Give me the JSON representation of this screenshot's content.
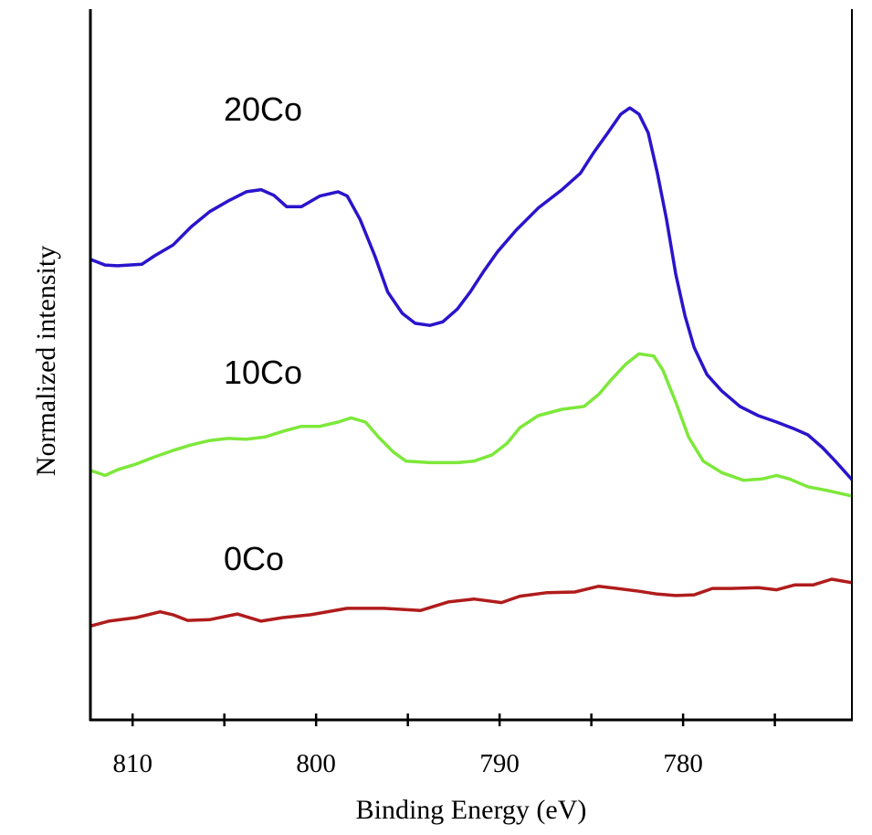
{
  "chart_data": {
    "type": "line",
    "title": "",
    "xlabel": "Binding Energy (eV)",
    "ylabel": "Normalized intensity",
    "xlim": [
      812.3,
      770.8
    ],
    "x_reversed": true,
    "ylim": [
      0,
      100
    ],
    "y_ticks_shown": false,
    "x_ticks": [
      810,
      800,
      790,
      780
    ],
    "x_tick_labels": [
      "810",
      "800",
      "790",
      "780"
    ],
    "x_minor_ticks": [
      805,
      795,
      785,
      775
    ],
    "grid": false,
    "legend": "none; series labeled inline",
    "series": [
      {
        "name": "20Co",
        "color": "#2a14cc",
        "x": [
          812.3,
          811.5,
          810.8,
          809.5,
          808.8,
          807.8,
          806.8,
          805.8,
          804.8,
          803.8,
          803.0,
          802.3,
          801.6,
          800.8,
          799.8,
          798.8,
          798.3,
          797.6,
          796.8,
          796.1,
          795.3,
          794.6,
          793.8,
          793.1,
          792.3,
          791.6,
          790.9,
          790.1,
          789.1,
          787.9,
          786.6,
          785.6,
          784.9,
          784.1,
          783.4,
          782.9,
          782.4,
          781.9,
          781.4,
          780.9,
          780.4,
          779.9,
          779.4,
          778.7,
          777.9,
          776.9,
          775.9,
          774.9,
          773.9,
          773.2,
          772.4,
          771.7,
          770.8
        ],
        "y": [
          64.8,
          64.0,
          63.9,
          64.1,
          65.3,
          66.8,
          69.4,
          71.5,
          73.0,
          74.3,
          74.6,
          73.8,
          72.2,
          72.2,
          73.7,
          74.3,
          73.7,
          70.4,
          65.3,
          60.2,
          57.2,
          55.8,
          55.5,
          56.0,
          57.8,
          60.2,
          63.0,
          65.9,
          68.9,
          72.0,
          74.6,
          76.9,
          79.7,
          82.6,
          85.2,
          86.1,
          85.2,
          82.6,
          76.9,
          70.4,
          62.7,
          56.9,
          52.4,
          48.6,
          46.3,
          44.1,
          42.8,
          41.9,
          40.9,
          40.1,
          38.3,
          36.4,
          33.8
        ]
      },
      {
        "name": "10Co",
        "color": "#7de83a",
        "x": [
          812.3,
          811.5,
          810.8,
          809.8,
          808.8,
          807.8,
          806.8,
          805.8,
          804.8,
          803.8,
          802.8,
          801.8,
          800.8,
          799.8,
          798.8,
          798.1,
          797.3,
          796.6,
          795.8,
          795.1,
          793.8,
          792.3,
          791.4,
          790.4,
          789.6,
          788.9,
          787.9,
          786.6,
          785.4,
          784.6,
          783.9,
          783.1,
          782.4,
          781.6,
          781.1,
          780.4,
          779.7,
          778.9,
          777.9,
          776.7,
          775.7,
          774.9,
          774.2,
          773.2,
          772.2,
          770.8
        ],
        "y": [
          35.1,
          34.4,
          35.2,
          36.0,
          37.0,
          37.9,
          38.7,
          39.3,
          39.6,
          39.5,
          39.8,
          40.6,
          41.3,
          41.3,
          41.9,
          42.5,
          41.9,
          39.8,
          37.7,
          36.4,
          36.2,
          36.2,
          36.4,
          37.3,
          38.9,
          41.1,
          42.8,
          43.7,
          44.1,
          45.8,
          47.9,
          50.1,
          51.5,
          51.2,
          49.2,
          44.7,
          39.8,
          36.4,
          34.8,
          33.7,
          33.9,
          34.4,
          33.9,
          32.8,
          32.3,
          31.5
        ]
      },
      {
        "name": "0Co",
        "color": "#b01c1c",
        "x": [
          812.3,
          811.3,
          809.8,
          808.5,
          807.8,
          807.0,
          805.8,
          804.3,
          803.0,
          801.8,
          800.3,
          798.3,
          796.3,
          794.3,
          792.8,
          791.4,
          789.9,
          788.9,
          787.4,
          785.9,
          784.6,
          783.6,
          782.4,
          781.4,
          780.4,
          779.4,
          778.4,
          777.4,
          775.9,
          774.9,
          773.9,
          772.9,
          771.9,
          770.8
        ],
        "y": [
          13.2,
          13.9,
          14.4,
          15.2,
          14.8,
          14.0,
          14.1,
          14.9,
          13.9,
          14.4,
          14.8,
          15.7,
          15.7,
          15.4,
          16.6,
          17.0,
          16.5,
          17.4,
          17.9,
          18.0,
          18.8,
          18.5,
          18.1,
          17.7,
          17.5,
          17.6,
          18.5,
          18.5,
          18.6,
          18.3,
          19.0,
          19.0,
          19.8,
          19.3
        ]
      }
    ]
  }
}
